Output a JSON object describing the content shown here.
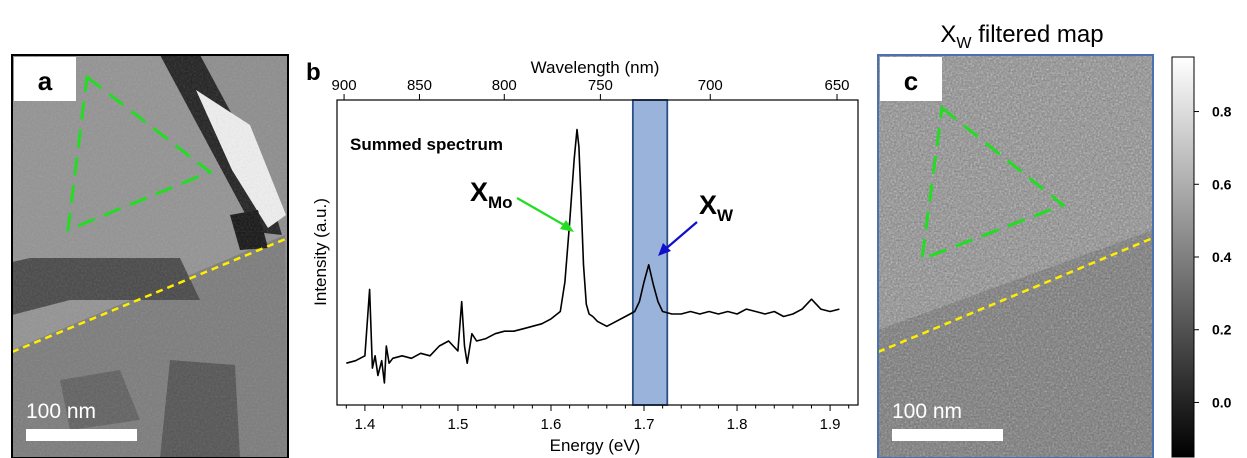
{
  "panel_a": {
    "label": "a",
    "scalebar_label": "100 nm"
  },
  "panel_b": {
    "label": "b",
    "inner_title": "Summed spectrum",
    "peak_labels": [
      {
        "main": "X",
        "sub": "Mo"
      },
      {
        "main": "X",
        "sub": "W"
      }
    ]
  },
  "panel_c": {
    "label": "c",
    "title_main": "X",
    "title_sub": "W",
    "title_rest": " filtered map",
    "scalebar_label": "100 nm"
  },
  "colorbar": {
    "ticks": [
      "0.8",
      "0.6",
      "0.4",
      "0.2",
      "0.0"
    ],
    "tick_values": [
      0.8,
      0.6,
      0.4,
      0.2,
      0.0
    ],
    "range": [
      -0.15,
      0.95
    ]
  },
  "colors": {
    "triangle": "#22dd22",
    "boundary": "#ffee00",
    "filter_band": "#5b84c4",
    "arrow_mo": "#22dd22",
    "arrow_w": "#1010cc",
    "frame_c": "#4a72b0"
  },
  "chart_data": {
    "type": "line",
    "xlabel": "Energy (eV)",
    "ylabel": "Intensity (a.u.)",
    "x2label": "Wavelength (nm)",
    "xlim": [
      1.37,
      1.93
    ],
    "xticks": [
      "1.4",
      "1.5",
      "1.6",
      "1.7",
      "1.8",
      "1.9"
    ],
    "xtick_values": [
      1.4,
      1.5,
      1.6,
      1.7,
      1.8,
      1.9
    ],
    "x2ticks": [
      "900",
      "850",
      "800",
      "750",
      "700",
      "650"
    ],
    "x2tick_values": [
      900,
      850,
      800,
      750,
      700,
      650
    ],
    "filter_band": [
      1.688,
      1.725
    ],
    "series": [
      {
        "x": [
          1.38,
          1.39,
          1.4,
          1.405,
          1.408,
          1.411,
          1.414,
          1.418,
          1.421,
          1.423,
          1.426,
          1.43,
          1.44,
          1.45,
          1.46,
          1.47,
          1.48,
          1.49,
          1.5,
          1.504,
          1.507,
          1.51,
          1.515,
          1.52,
          1.53,
          1.54,
          1.55,
          1.56,
          1.57,
          1.58,
          1.59,
          1.6,
          1.61,
          1.615,
          1.62,
          1.625,
          1.628,
          1.63,
          1.632,
          1.635,
          1.638,
          1.641,
          1.645,
          1.65,
          1.66,
          1.67,
          1.68,
          1.69,
          1.695,
          1.7,
          1.705,
          1.71,
          1.715,
          1.72,
          1.73,
          1.74,
          1.75,
          1.76,
          1.77,
          1.78,
          1.79,
          1.8,
          1.81,
          1.82,
          1.83,
          1.84,
          1.85,
          1.86,
          1.87,
          1.88,
          1.89,
          1.9,
          1.91
        ],
        "y": [
          0.05,
          0.06,
          0.08,
          0.35,
          0.03,
          0.08,
          0.0,
          0.06,
          -0.03,
          0.12,
          0.05,
          0.07,
          0.08,
          0.07,
          0.09,
          0.08,
          0.12,
          0.14,
          0.1,
          0.3,
          0.12,
          0.05,
          0.17,
          0.14,
          0.15,
          0.17,
          0.18,
          0.18,
          0.19,
          0.2,
          0.21,
          0.23,
          0.26,
          0.38,
          0.62,
          0.88,
          1.0,
          0.93,
          0.74,
          0.45,
          0.29,
          0.25,
          0.24,
          0.22,
          0.2,
          0.22,
          0.24,
          0.26,
          0.3,
          0.38,
          0.45,
          0.37,
          0.3,
          0.26,
          0.25,
          0.25,
          0.26,
          0.25,
          0.26,
          0.25,
          0.26,
          0.25,
          0.27,
          0.26,
          0.25,
          0.26,
          0.24,
          0.25,
          0.27,
          0.31,
          0.27,
          0.26,
          0.27
        ]
      }
    ]
  }
}
